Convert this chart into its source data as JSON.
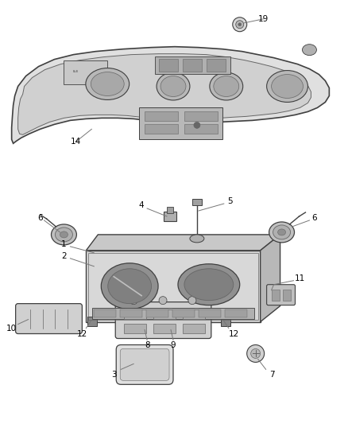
{
  "bg_color": "#ffffff",
  "fg_color": "#404040",
  "light_gray": "#cccccc",
  "mid_gray": "#aaaaaa",
  "dark_gray": "#666666",
  "figsize": [
    4.38,
    5.33
  ],
  "dpi": 100
}
